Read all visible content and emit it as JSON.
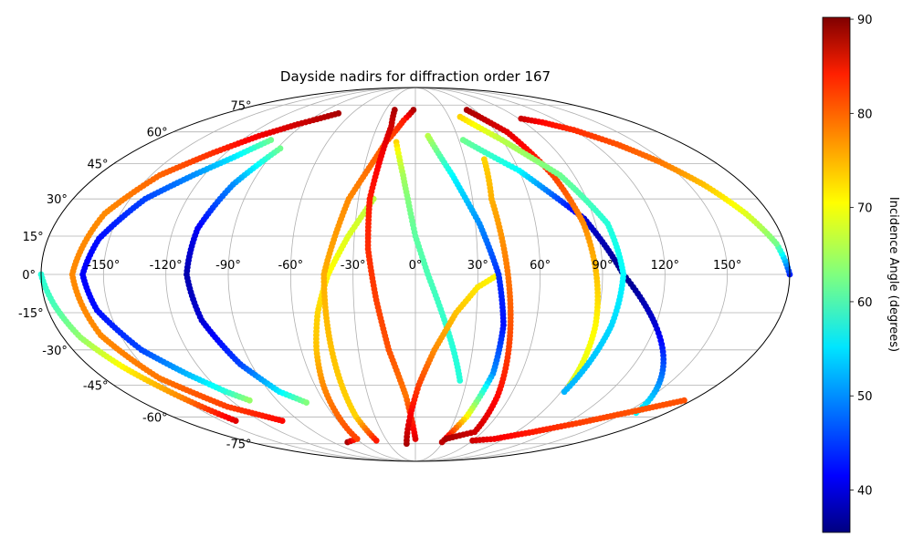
{
  "chart_data": {
    "type": "scatter",
    "title": "Dayside nadirs for diffraction order 167",
    "projection": "mollweide",
    "grid": true,
    "x_ticks": [
      "-150°",
      "-120°",
      "-90°",
      "-60°",
      "-30°",
      "0°",
      "30°",
      "60°",
      "90°",
      "120°",
      "150°"
    ],
    "y_ticks": [
      "-75°",
      "-60°",
      "-45°",
      "-30°",
      "-15°",
      "0°",
      "15°",
      "30°",
      "45°",
      "60°",
      "75°"
    ],
    "colorbar": {
      "label": "Incidence Angle (degrees)",
      "range": [
        35.5,
        90.2
      ],
      "ticks": [
        "40",
        "50",
        "60",
        "70",
        "80",
        "90"
      ],
      "colormap": "jet"
    },
    "series": [
      {
        "x": [
          -139,
          -150,
          -162,
          -171,
          -176,
          -180
        ],
        "y": [
          -62,
          -50,
          -37,
          -25,
          -12,
          0
        ],
        "c": [
          85,
          76,
          70,
          64,
          60,
          58
        ]
      },
      {
        "x": [
          180,
          176,
          168,
          158,
          147,
          135,
          120,
          105,
          92
        ],
        "y": [
          0,
          12,
          24,
          36,
          46,
          54,
          61,
          65,
          67
        ],
        "c": [
          44,
          62,
          68,
          73,
          77,
          79,
          81,
          83,
          86
        ]
      },
      {
        "x": [
          -73,
          -95,
          -112,
          -128,
          -145,
          -158,
          -165,
          -160,
          -148,
          -128,
          -103
        ],
        "y": [
          70,
          64,
          58,
          50,
          40,
          24,
          0,
          -24,
          -42,
          -55,
          -62
        ],
        "c": [
          88,
          86,
          84,
          81,
          78,
          76,
          76,
          76,
          77,
          80,
          83
        ]
      },
      {
        "x": [
          -100,
          -112,
          -126,
          -142,
          -155,
          -160,
          -156,
          -144,
          -130,
          -117,
          -108
        ],
        "y": [
          56,
          48,
          40,
          30,
          14,
          0,
          -14,
          -30,
          -40,
          -48,
          -52
        ],
        "c": [
          62,
          55,
          50,
          46,
          43,
          42,
          43,
          46,
          52,
          58,
          64
        ]
      },
      {
        "x": [
          -88,
          -100,
          -108,
          -110,
          -106,
          -96,
          -84,
          -72
        ],
        "y": [
          52,
          36,
          18,
          0,
          -18,
          -36,
          -48,
          -53
        ],
        "c": [
          62,
          50,
          42,
          38,
          40,
          46,
          55,
          63
        ]
      },
      {
        "x": [
          -74,
          -59,
          -57,
          -55,
          -52,
          -48,
          -42,
          -33,
          -22
        ],
        "y": [
          -74,
          -72,
          -60,
          -45,
          -30,
          -15,
          0,
          15,
          30
        ],
        "c": [
          88,
          80,
          78,
          76,
          73,
          72,
          70,
          68,
          66
        ]
      },
      {
        "x": [
          -2,
          -10,
          -20,
          -35,
          -44,
          -44,
          -44,
          -41
        ],
        "y": [
          72,
          66,
          55,
          30,
          0,
          -30,
          -60,
          -73
        ],
        "c": [
          88,
          82,
          79,
          76,
          74,
          73,
          72,
          82
        ]
      },
      {
        "x": [
          -21,
          -19,
          -21,
          -24,
          -23,
          -19,
          -14,
          -6,
          0
        ],
        "y": [
          72,
          63,
          50,
          30,
          10,
          -10,
          -30,
          -50,
          -72
        ],
        "c": [
          88,
          86,
          84,
          82,
          81,
          80,
          79,
          77,
          85
        ]
      },
      {
        "x": [
          -13,
          -10,
          -7,
          -4,
          0,
          6,
          13,
          20,
          26
        ],
        "y": [
          55,
          48,
          40,
          30,
          15,
          0,
          -15,
          -30,
          -43
        ],
        "c": [
          72,
          68,
          65,
          63,
          61,
          60,
          59,
          58,
          58
        ]
      },
      {
        "x": [
          -10,
          -4,
          2,
          10,
          20,
          30,
          40
        ],
        "y": [
          -75,
          -60,
          -45,
          -30,
          -15,
          -5,
          0
        ],
        "c": [
          88,
          84,
          80,
          76,
          73,
          71,
          70
        ]
      },
      {
        "x": [
          9,
          21,
          32,
          40,
          44,
          44,
          38,
          29
        ],
        "y": [
          58,
          40,
          20,
          0,
          -20,
          -40,
          -60,
          -74
        ],
        "c": [
          66,
          56,
          50,
          45,
          43,
          50,
          70,
          87
        ]
      },
      {
        "x": [
          31,
          53,
          52,
          49,
          46,
          43,
          40,
          42
        ],
        "y": [
          -72,
          -68,
          -50,
          -30,
          -10,
          10,
          30,
          47
        ],
        "c": [
          88,
          86,
          83,
          80,
          78,
          76,
          74,
          72
        ]
      },
      {
        "x": [
          33,
          60,
          85,
          100,
          120,
          140,
          158
        ],
        "y": [
          56,
          42,
          22,
          0,
          -20,
          -40,
          -58
        ],
        "c": [
          62,
          56,
          40,
          36,
          40,
          48,
          56
        ]
      },
      {
        "x": [
          52,
          68,
          78,
          84,
          87,
          90,
          92
        ],
        "y": [
          72,
          60,
          40,
          20,
          0,
          -20,
          -45
        ],
        "c": [
          88,
          85,
          80,
          76,
          73,
          70,
          68
        ]
      },
      {
        "x": [
          40,
          60,
          82,
          96,
          100,
          98,
          92
        ],
        "y": [
          68,
          56,
          40,
          20,
          0,
          -20,
          -48
        ],
        "c": [
          72,
          66,
          62,
          58,
          56,
          54,
          52
        ]
      },
      {
        "x": [
          60,
          80,
          105,
          130,
          155,
          175
        ],
        "y": [
          -73,
          -72,
          -68,
          -63,
          -57,
          -52
        ],
        "c": [
          86,
          84,
          82,
          80,
          79,
          79
        ]
      }
    ]
  }
}
